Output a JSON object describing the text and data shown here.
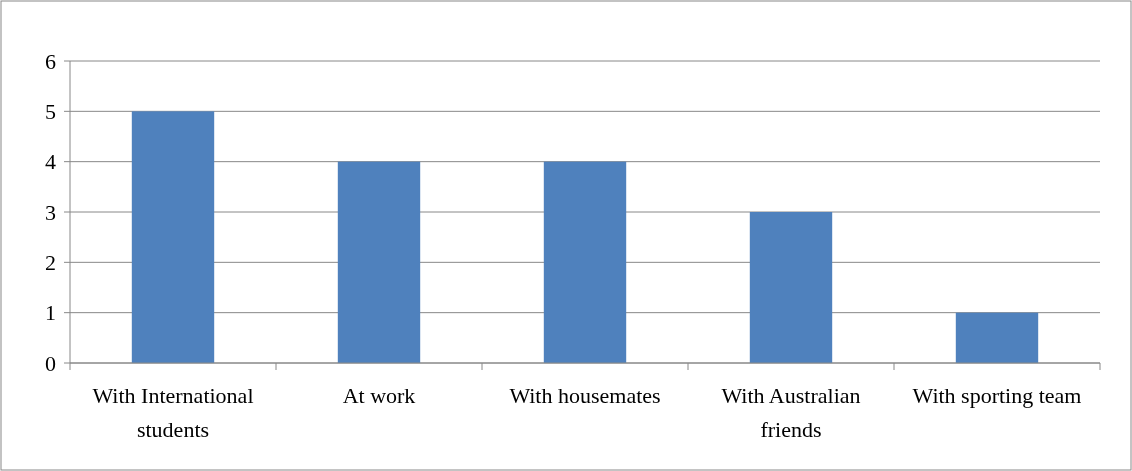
{
  "chart_data": {
    "type": "bar",
    "categories": [
      "With International students",
      "At work",
      "With housemates",
      "With Australian friends",
      "With sporting team"
    ],
    "values": [
      5,
      4,
      4,
      3,
      1
    ],
    "color": "#4f81bd",
    "ylim": [
      0,
      6
    ],
    "yticks": [
      0,
      1,
      2,
      3,
      4,
      5,
      6
    ],
    "grid": "y"
  }
}
